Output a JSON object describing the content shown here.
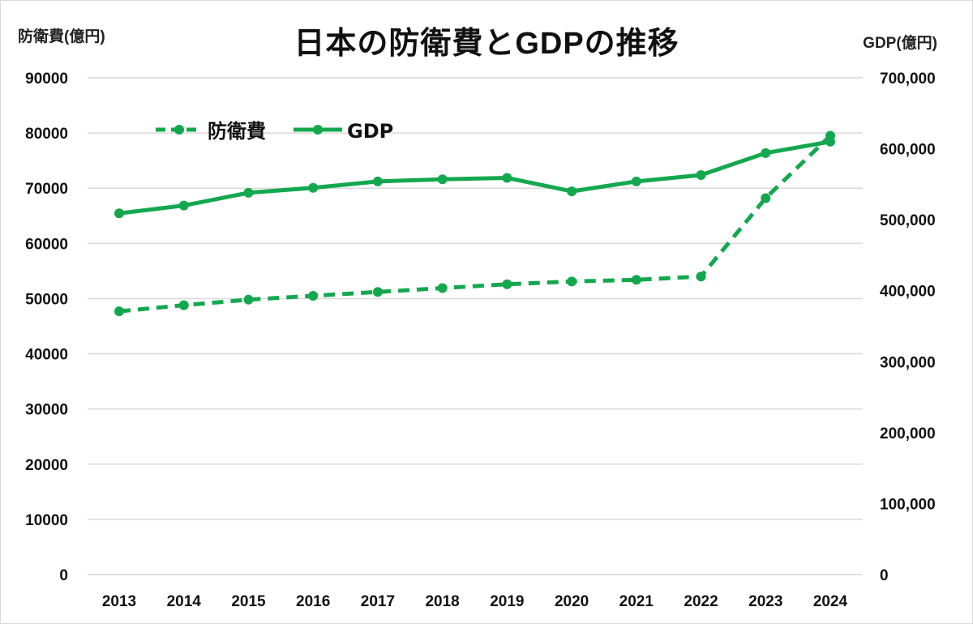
{
  "chart_data": {
    "type": "line",
    "title": "日本の防衛費とGDPの推移",
    "xlabel": "",
    "ylabel_left": "防衛費(億円)",
    "ylabel_right": "GDP(億円)",
    "categories": [
      "2013",
      "2014",
      "2015",
      "2016",
      "2017",
      "2018",
      "2019",
      "2020",
      "2021",
      "2022",
      "2023",
      "2024"
    ],
    "y_left": {
      "range": [
        0,
        90000
      ],
      "ticks": [
        0,
        10000,
        20000,
        30000,
        40000,
        50000,
        60000,
        70000,
        80000,
        90000
      ],
      "tick_labels": [
        "0",
        "10000",
        "20000",
        "30000",
        "40000",
        "50000",
        "60000",
        "70000",
        "80000",
        "90000"
      ]
    },
    "y_right": {
      "range": [
        0,
        700000
      ],
      "ticks": [
        0,
        100000,
        200000,
        300000,
        400000,
        500000,
        600000,
        700000
      ],
      "tick_labels": [
        "0",
        "100,000",
        "200,000",
        "300,000",
        "400,000",
        "500,000",
        "600,000",
        "700,000"
      ]
    },
    "grid": true,
    "legend_position": "top-left",
    "series": [
      {
        "name": "防衛費",
        "axis": "left",
        "style": "dashed",
        "marker": "circle",
        "color": "#14a84e",
        "values": [
          47700,
          48800,
          49800,
          50500,
          51200,
          51900,
          52600,
          53100,
          53400,
          54000,
          68200,
          79500
        ]
      },
      {
        "name": "GDP",
        "axis": "right",
        "style": "solid",
        "marker": "circle",
        "color": "#14a84e",
        "values": [
          509000,
          520000,
          538000,
          545000,
          554000,
          557000,
          559000,
          540000,
          554000,
          563000,
          594000,
          610000
        ]
      }
    ]
  }
}
